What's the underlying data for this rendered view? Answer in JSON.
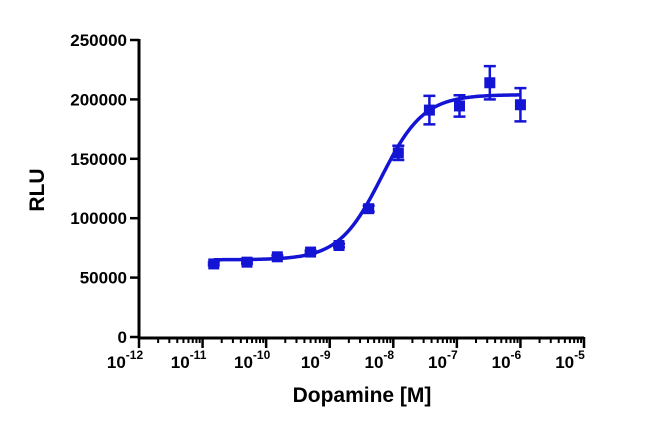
{
  "chart_data": {
    "type": "scatter",
    "title": "",
    "xlabel": "Dopamine [M]",
    "ylabel": "RLU",
    "x_scale": "log",
    "xlim": [
      1e-12,
      1e-05
    ],
    "ylim": [
      0,
      250000
    ],
    "grid": false,
    "legend": "none",
    "x_ticks": [
      {
        "value": 1e-12,
        "base": "10",
        "exp": "-12"
      },
      {
        "value": 1e-11,
        "base": "10",
        "exp": "-11"
      },
      {
        "value": 1e-10,
        "base": "10",
        "exp": "-10"
      },
      {
        "value": 1e-09,
        "base": "10",
        "exp": "-9"
      },
      {
        "value": 1e-08,
        "base": "10",
        "exp": "-8"
      },
      {
        "value": 1e-07,
        "base": "10",
        "exp": "-7"
      },
      {
        "value": 1e-06,
        "base": "10",
        "exp": "-6"
      },
      {
        "value": 1e-05,
        "base": "10",
        "exp": "-5"
      }
    ],
    "y_ticks": [
      {
        "value": 0,
        "label": "0"
      },
      {
        "value": 50000,
        "label": "50000"
      },
      {
        "value": 100000,
        "label": "100000"
      },
      {
        "value": 150000,
        "label": "150000"
      },
      {
        "value": 200000,
        "label": "200000"
      },
      {
        "value": 250000,
        "label": "250000"
      }
    ],
    "series": [
      {
        "color": "#1414d4",
        "marker": "square",
        "points": [
          {
            "x": 1.5e-11,
            "y": 61500,
            "err": 1200
          },
          {
            "x": 5e-11,
            "y": 63000,
            "err": 1200
          },
          {
            "x": 1.5e-10,
            "y": 67500,
            "err": 1200
          },
          {
            "x": 5e-10,
            "y": 71500,
            "err": 1200
          },
          {
            "x": 1.4e-09,
            "y": 77000,
            "err": 1500
          },
          {
            "x": 4.1e-09,
            "y": 108000,
            "err": 2500
          },
          {
            "x": 1.2e-08,
            "y": 155000,
            "err": 6000
          },
          {
            "x": 3.7e-08,
            "y": 191000,
            "err": 12000
          },
          {
            "x": 1.1e-07,
            "y": 194500,
            "err": 9000
          },
          {
            "x": 3.3e-07,
            "y": 214000,
            "err": 14000
          },
          {
            "x": 1e-06,
            "y": 195500,
            "err": 14000
          }
        ],
        "fit": {
          "model": "sigmoidal dose-response",
          "bottom": 65000,
          "top": 204000,
          "ec50": 6.5e-09,
          "hill": 1.3,
          "xrange": [
            1.5e-11,
            1e-06
          ]
        }
      }
    ]
  }
}
